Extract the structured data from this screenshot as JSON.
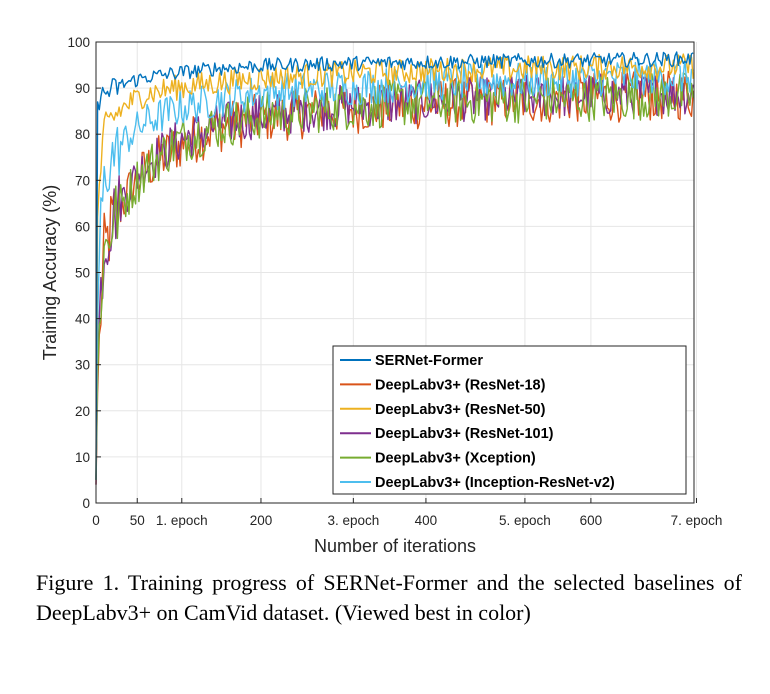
{
  "chart_data": {
    "type": "line",
    "title": "",
    "xlabel": "Number of iterations",
    "ylabel": "Training Accuracy (%)",
    "xlim": [
      0,
      725
    ],
    "ylim": [
      0,
      100
    ],
    "grid": true,
    "legend_position": "bottom-right",
    "x_ticks": [
      {
        "value": 0,
        "label": "0"
      },
      {
        "value": 50,
        "label": "50"
      },
      {
        "value": 104,
        "label": "1. epoch"
      },
      {
        "value": 200,
        "label": "200"
      },
      {
        "value": 312,
        "label": "3. epoch"
      },
      {
        "value": 400,
        "label": "400"
      },
      {
        "value": 520,
        "label": "5. epoch"
      },
      {
        "value": 600,
        "label": "600"
      },
      {
        "value": 728,
        "label": "7. epoch"
      }
    ],
    "y_ticks": [
      0,
      10,
      20,
      30,
      40,
      50,
      60,
      70,
      80,
      90,
      100
    ],
    "series": [
      {
        "name": "SERNet-Former",
        "color": "#0072BD",
        "x": [
          0,
          2,
          5,
          10,
          20,
          40,
          60,
          100,
          150,
          200,
          300,
          400,
          500,
          600,
          725
        ],
        "values": [
          5,
          87,
          88,
          89,
          90,
          91.5,
          92.5,
          93.5,
          94.5,
          95,
          95.5,
          95.8,
          96,
          96.2,
          96.5
        ]
      },
      {
        "name": "DeepLabv3+ (ResNet-18)",
        "color": "#D95319",
        "x": [
          0,
          2,
          5,
          10,
          20,
          40,
          60,
          100,
          150,
          200,
          300,
          400,
          500,
          600,
          725
        ],
        "values": [
          4,
          24,
          40,
          55,
          62,
          68,
          73,
          78,
          82,
          84,
          86,
          87,
          88,
          88.5,
          89
        ]
      },
      {
        "name": "DeepLabv3+ (ResNet-50)",
        "color": "#EDB120",
        "x": [
          0,
          2,
          5,
          10,
          20,
          40,
          60,
          100,
          150,
          200,
          300,
          400,
          500,
          600,
          725
        ],
        "values": [
          5,
          62,
          72,
          80,
          84,
          87,
          89,
          90.5,
          91.5,
          92.5,
          93.5,
          94,
          94.5,
          94.8,
          95
        ]
      },
      {
        "name": "DeepLabv3+ (ResNet-101)",
        "color": "#7E2F8E",
        "x": [
          0,
          2,
          5,
          10,
          20,
          40,
          60,
          100,
          150,
          200,
          300,
          400,
          500,
          600,
          725
        ],
        "values": [
          4,
          30,
          45,
          56,
          63,
          69,
          74,
          79,
          82.5,
          84.5,
          86.5,
          87.5,
          88.5,
          89,
          89.5
        ]
      },
      {
        "name": "DeepLabv3+ (Xception)",
        "color": "#77AC30",
        "x": [
          0,
          2,
          5,
          10,
          20,
          40,
          60,
          100,
          150,
          200,
          300,
          400,
          500,
          600,
          725
        ],
        "values": [
          5,
          28,
          44,
          55,
          62,
          68,
          73,
          79,
          82.5,
          84.5,
          86.5,
          87.5,
          88,
          88.5,
          89
        ]
      },
      {
        "name": "DeepLabv3+ (Inception-ResNet-v2)",
        "color": "#4DBEEE",
        "x": [
          0,
          2,
          5,
          10,
          20,
          40,
          60,
          100,
          150,
          200,
          300,
          400,
          500,
          600,
          725
        ],
        "values": [
          5,
          40,
          60,
          70,
          76,
          80,
          83,
          86,
          88,
          89.5,
          90.5,
          91.5,
          92,
          92.5,
          93
        ]
      }
    ]
  },
  "caption": "Figure 1. Training progress of SERNet-Former and the selected baselines of DeepLabv3+ on CamVid dataset. (Viewed best in color)"
}
